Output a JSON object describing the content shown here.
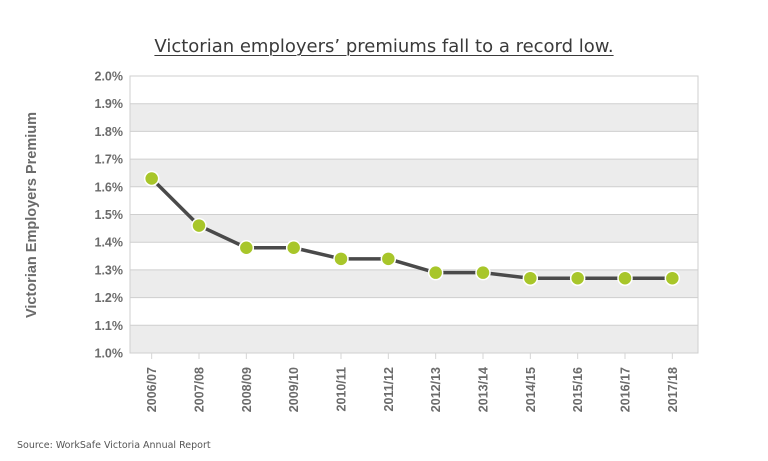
{
  "chart_data": {
    "type": "line",
    "title": "Victorian employers’ premiums fall to a record low.",
    "xlabel": "",
    "ylabel": "Victorian Employers Premium",
    "categories": [
      "2006/07",
      "2007/08",
      "2008/09",
      "2009/10",
      "2010/11",
      "2011/12",
      "2012/13",
      "2013/14",
      "2014/15",
      "2015/16",
      "2016/17",
      "2017/18"
    ],
    "series": [
      {
        "name": "Victorian Employers Premium",
        "values": [
          1.63,
          1.46,
          1.38,
          1.38,
          1.34,
          1.34,
          1.29,
          1.29,
          1.27,
          1.27,
          1.27,
          1.27
        ],
        "line_color": "#4a4a4a",
        "marker_color": "#a8c62a"
      }
    ],
    "ylim": [
      1.0,
      2.0
    ],
    "yticks": [
      "2.0%",
      "1.9%",
      "1.8%",
      "1.7%",
      "1.6%",
      "1.5%",
      "1.4%",
      "1.3%",
      "1.2%",
      "1.1%",
      "1.0%"
    ],
    "grid": true,
    "legend": "none",
    "source": "Source: WorkSafe Victoria Annual Report"
  }
}
